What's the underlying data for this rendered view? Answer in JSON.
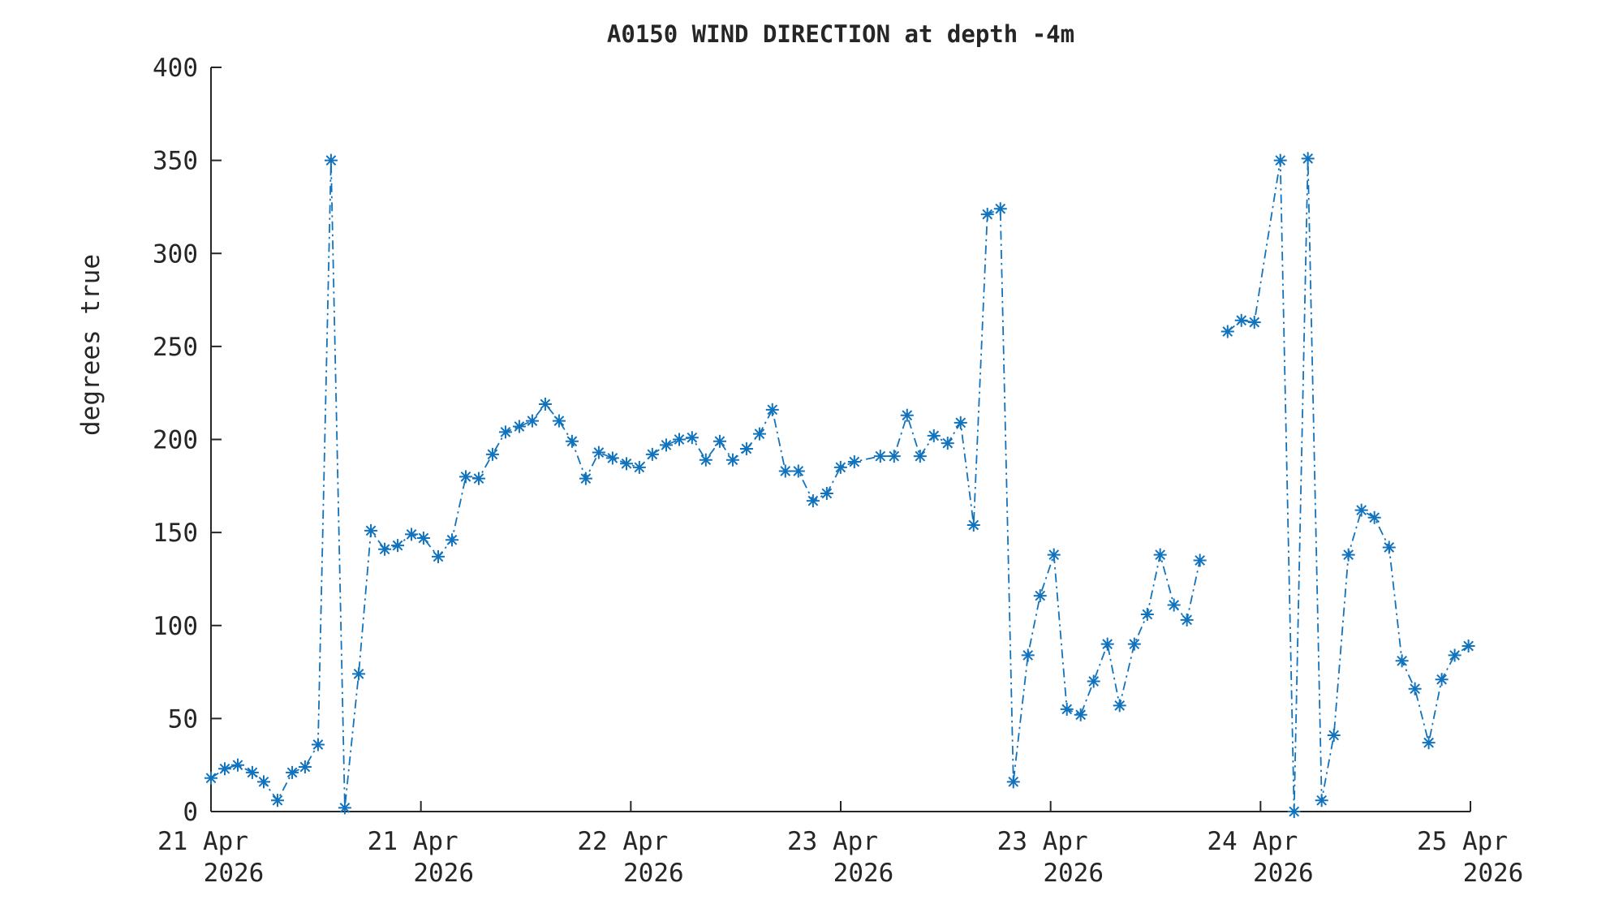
{
  "figure": {
    "background": "#ffffff"
  },
  "chart_data": {
    "type": "line",
    "title": "A0150 WIND DIRECTION at depth -4m",
    "xlabel": "",
    "ylabel": "degrees true",
    "ylim": [
      0,
      400
    ],
    "yticks": [
      0,
      50,
      100,
      150,
      200,
      250,
      300,
      350,
      400
    ],
    "x_unit": "hours since 21 Apr 2026 00:00",
    "xlim_hours": [
      0,
      96
    ],
    "xticks": [
      {
        "hour": 0,
        "line1": "21 Apr",
        "line2": "2026"
      },
      {
        "hour": 16,
        "line1": "21 Apr",
        "line2": "2026"
      },
      {
        "hour": 32,
        "line1": "22 Apr",
        "line2": "2026"
      },
      {
        "hour": 48,
        "line1": "23 Apr",
        "line2": "2026"
      },
      {
        "hour": 64,
        "line1": "23 Apr",
        "line2": "2026"
      },
      {
        "hour": 80,
        "line1": "24 Apr",
        "line2": "2026"
      },
      {
        "hour": 96,
        "line1": "25 Apr",
        "line2": "2026"
      }
    ],
    "grid": false,
    "box": false,
    "legend": "none",
    "colors": {
      "line": "#1173bd",
      "marker": "#1173bd",
      "axis": "#262626",
      "text": "#262626"
    },
    "series": [
      {
        "name": "wind direction",
        "marker": "asterisk",
        "linestyle": "dash-dot",
        "segments": [
          {
            "points": [
              [
                0,
                18
              ],
              [
                1.05,
                23
              ],
              [
                2.04,
                25
              ],
              [
                3.15,
                21
              ],
              [
                4.02,
                16
              ],
              [
                5.07,
                6
              ],
              [
                6.19,
                21
              ],
              [
                7.17,
                24
              ],
              [
                8.16,
                36
              ],
              [
                9.15,
                350
              ],
              [
                10.2,
                2
              ],
              [
                11.26,
                74
              ],
              [
                12.19,
                151
              ],
              [
                13.24,
                141
              ],
              [
                14.23,
                143
              ],
              [
                15.28,
                149
              ],
              [
                16.2,
                147
              ],
              [
                17.32,
                137
              ],
              [
                18.37,
                146
              ],
              [
                19.42,
                180
              ],
              [
                20.41,
                179
              ],
              [
                21.46,
                192
              ],
              [
                22.45,
                204
              ],
              [
                23.5,
                207
              ],
              [
                24.49,
                210
              ],
              [
                25.48,
                219
              ],
              [
                26.53,
                210
              ],
              [
                27.52,
                199
              ],
              [
                28.57,
                179
              ],
              [
                29.56,
                193
              ],
              [
                30.61,
                190
              ],
              [
                31.67,
                187
              ],
              [
                32.65,
                185
              ],
              [
                33.64,
                192
              ],
              [
                34.7,
                197
              ],
              [
                35.69,
                200
              ],
              [
                36.67,
                201
              ],
              [
                37.72,
                189
              ],
              [
                38.78,
                199
              ],
              [
                39.77,
                189
              ],
              [
                40.82,
                195
              ],
              [
                41.81,
                203
              ],
              [
                42.79,
                216
              ],
              [
                43.78,
                183
              ],
              [
                44.77,
                183
              ],
              [
                45.89,
                167
              ],
              [
                46.94,
                171
              ],
              [
                47.99,
                185
              ],
              [
                49.04,
                188
              ],
              [
                51.02,
                191
              ],
              [
                52.07,
                191
              ],
              [
                53.06,
                213
              ],
              [
                54.05,
                191
              ],
              [
                55.1,
                202
              ],
              [
                56.15,
                198
              ],
              [
                57.14,
                209
              ],
              [
                58.13,
                154
              ],
              [
                59.18,
                321
              ],
              [
                60.17,
                324
              ],
              [
                61.16,
                16
              ],
              [
                62.27,
                84
              ],
              [
                63.2,
                116
              ],
              [
                64.25,
                138
              ],
              [
                65.24,
                55
              ],
              [
                66.29,
                52
              ],
              [
                67.28,
                70
              ],
              [
                68.33,
                90
              ],
              [
                69.26,
                57
              ],
              [
                70.38,
                90
              ],
              [
                71.37,
                106
              ],
              [
                72.35,
                138
              ],
              [
                73.4,
                111
              ],
              [
                74.39,
                103
              ],
              [
                75.38,
                135
              ]
            ]
          },
          {
            "points": [
              [
                77.49,
                258
              ],
              [
                78.54,
                264
              ],
              [
                79.53,
                263
              ],
              [
                81.51,
                350
              ],
              [
                82.56,
                0
              ],
              [
                83.61,
                351
              ],
              [
                84.66,
                6
              ],
              [
                85.59,
                41
              ],
              [
                86.7,
                138
              ],
              [
                87.69,
                162
              ],
              [
                88.68,
                158
              ],
              [
                89.8,
                142
              ],
              [
                90.78,
                81
              ],
              [
                91.77,
                66
              ],
              [
                92.82,
                37
              ],
              [
                93.81,
                71
              ],
              [
                94.8,
                84
              ],
              [
                95.85,
                89
              ]
            ]
          }
        ]
      }
    ]
  }
}
